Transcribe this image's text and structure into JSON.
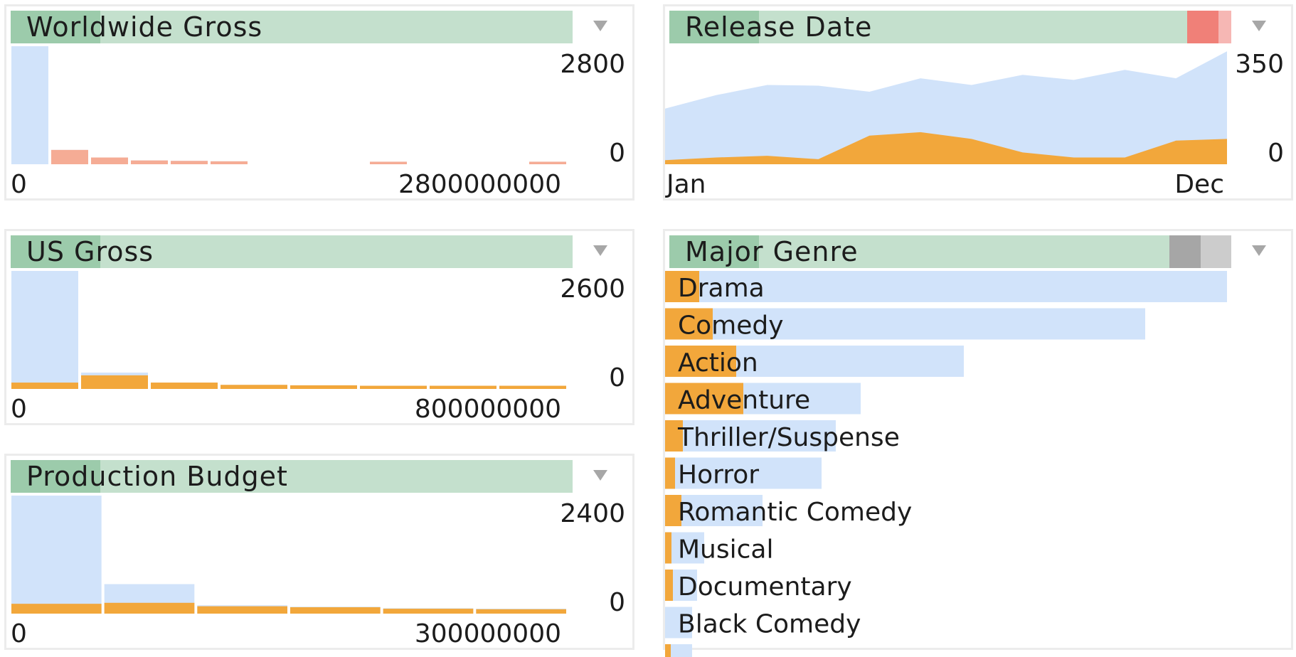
{
  "colors": {
    "header_bg": "#c4e0cd",
    "header_hi": "#9ccbab",
    "total": "#d1e3fa",
    "selected": "#f2a73b",
    "selected_light": "#f5ac95",
    "red_mark": "#f08078",
    "red_mark_light": "#f6b7b4",
    "gray_mark": "#a6a6a6",
    "gray_mark_light": "#cccccc",
    "dropdown": "#a7a7a7"
  },
  "panels": [
    {
      "title": "Worldwide Gross",
      "header_fill": 0.16,
      "icon": "dropdown-triangle-icon",
      "chart_data": {
        "type": "bar",
        "x_min_label": "0",
        "x_max_label": "2800000000",
        "y_max_label": "2800",
        "y_min_label": "0",
        "ylim": [
          0,
          2800
        ],
        "series": [
          {
            "values": [
              2800,
              340,
              160,
              90,
              80,
              70,
              0,
              0,
              0,
              60,
              0,
              0,
              0,
              60
            ]
          },
          {
            "values": [
              0,
              340,
              160,
              90,
              80,
              70,
              0,
              0,
              0,
              60,
              0,
              0,
              0,
              60
            ]
          }
        ]
      }
    },
    {
      "title": "US Gross",
      "header_fill": 0.16,
      "icon": "dropdown-triangle-icon",
      "chart_data": {
        "type": "bar",
        "x_min_label": "0",
        "x_max_label": "800000000",
        "y_max_label": "2600",
        "y_min_label": "0",
        "ylim": [
          0,
          2600
        ],
        "series": [
          {
            "values": [
              2600,
              360,
              140,
              90,
              80,
              70,
              70,
              70
            ]
          },
          {
            "values": [
              140,
              300,
              140,
              90,
              80,
              70,
              70,
              70
            ]
          }
        ]
      }
    },
    {
      "title": "Production Budget",
      "header_fill": 0.16,
      "icon": "dropdown-triangle-icon",
      "chart_data": {
        "type": "bar",
        "x_min_label": "0",
        "x_max_label": "300000000",
        "y_max_label": "2400",
        "y_min_label": "0",
        "ylim": [
          0,
          2400
        ],
        "series": [
          {
            "values": [
              2400,
              600,
              170,
              140,
              110,
              100
            ]
          },
          {
            "values": [
              200,
              220,
              150,
              130,
              100,
              90
            ]
          }
        ]
      }
    },
    {
      "title": "Release Date",
      "header_fill": 0.16,
      "icon": "dropdown-triangle-icon",
      "chart_data": {
        "type": "area",
        "x_min_label": "Jan",
        "x_max_label": "Dec",
        "y_max_label": "350",
        "y_min_label": "0",
        "ylim": [
          0,
          350
        ],
        "series": [
          {
            "values": [
              165,
              205,
              235,
              233,
              215,
              255,
              235,
              265,
              250,
              280,
              255,
              335
            ]
          },
          {
            "values": [
              12,
              20,
              25,
              15,
              85,
              95,
              75,
              35,
              20,
              20,
              70,
              75
            ]
          }
        ]
      }
    },
    {
      "title": "Major Genre",
      "header_fill": 0.16,
      "icon": "dropdown-triangle-icon",
      "chart_data": {
        "type": "bar",
        "categories": [
          "Drama",
          "Comedy",
          "Action",
          "Adventure",
          "Thriller/Suspense",
          "Horror",
          "Romantic Comedy",
          "Musical",
          "Documentary",
          "Black Comedy",
          ""
        ],
        "series": [
          {
            "values": [
              790,
              675,
              420,
              275,
              240,
              220,
              137,
              55,
              45,
              38,
              38
            ]
          },
          {
            "values": [
              48,
              67,
              100,
              110,
              25,
              14,
              23,
              9,
              11,
              0,
              8
            ]
          }
        ],
        "xlim": [
          0,
          790
        ]
      }
    }
  ]
}
